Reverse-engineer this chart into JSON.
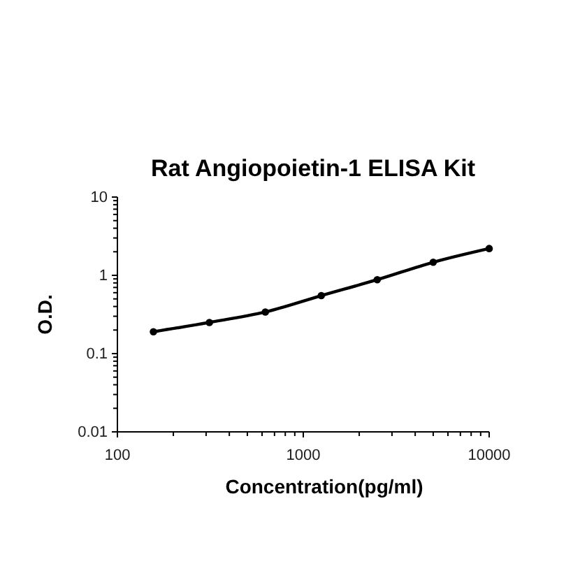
{
  "chart_data": {
    "type": "line",
    "title": "Rat Angiopoietin-1 ELISA Kit",
    "xlabel": "Concentration(pg/ml)",
    "ylabel": "O.D.",
    "x": [
      156.25,
      312.5,
      625,
      1250,
      2500,
      5000,
      10000
    ],
    "series": [
      {
        "color": "#000000",
        "values": [
          0.19,
          0.25,
          0.34,
          0.55,
          0.88,
          1.47,
          2.2
        ]
      }
    ],
    "log": "xy",
    "xlim": [
      100,
      10000
    ],
    "ylim": [
      0.01,
      10
    ],
    "xticks": [
      100,
      1000,
      10000
    ],
    "yticks": [
      0.01,
      0.1,
      1,
      10
    ],
    "marker": "circle",
    "line_style": "solid"
  }
}
